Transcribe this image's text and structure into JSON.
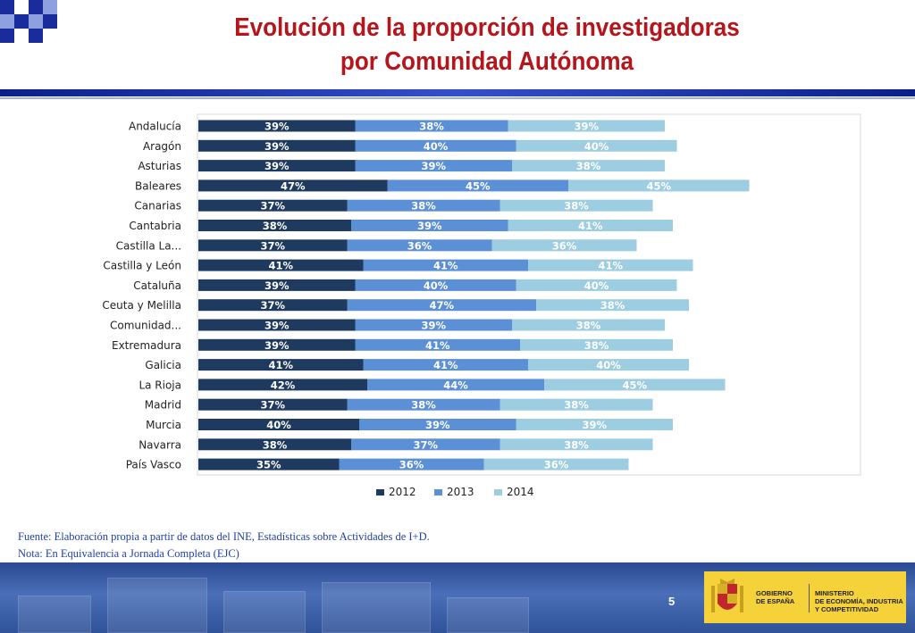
{
  "title": {
    "line1": "Evolución de la proporción de investigadoras",
    "line2": "por Comunidad Autónoma"
  },
  "notes": {
    "source": "Fuente: Elaboración propia a partir de datos del INE, Estadísticas sobre Actividades de I+D.",
    "note": "Nota: En Equivalencia a Jornada Completa (EJC)"
  },
  "footer": {
    "page_number": "5",
    "gov_line1": "GOBIERNO",
    "gov_line2": "DE ESPAÑA",
    "ministry_line1": "MINISTERIO",
    "ministry_line2": "DE ECONOMÍA, INDUSTRIA",
    "ministry_line3": "Y COMPETITIVIDAD"
  },
  "colors": {
    "title": "#b5161c",
    "series_2012": "#1f3a5f",
    "series_2013": "#5b8fd6",
    "series_2014": "#9dcde0"
  },
  "chart_data": {
    "type": "bar",
    "orientation": "horizontal",
    "stacked": true,
    "categories": [
      "Andalucía",
      "Aragón",
      "Asturias",
      "Baleares",
      "Canarias",
      "Cantabria",
      "Castilla La...",
      "Castilla y León",
      "Cataluña",
      "Ceuta y Melilla",
      "Comunidad...",
      "Extremadura",
      "Galicia",
      "La Rioja",
      "Madrid",
      "Murcia",
      "Navarra",
      "País Vasco"
    ],
    "series": [
      {
        "name": "2012",
        "color": "#1f3a5f",
        "values": [
          39,
          39,
          39,
          47,
          37,
          38,
          37,
          41,
          39,
          37,
          39,
          39,
          41,
          42,
          37,
          40,
          38,
          35
        ]
      },
      {
        "name": "2013",
        "color": "#5b8fd6",
        "values": [
          38,
          40,
          39,
          45,
          38,
          39,
          36,
          41,
          40,
          47,
          39,
          41,
          41,
          44,
          38,
          39,
          37,
          36
        ]
      },
      {
        "name": "2014",
        "color": "#9dcde0",
        "values": [
          39,
          40,
          38,
          45,
          38,
          41,
          36,
          41,
          40,
          38,
          38,
          38,
          40,
          45,
          38,
          39,
          38,
          36
        ]
      }
    ],
    "value_suffix": "%",
    "legend": "bottom",
    "grid": false,
    "title": "",
    "xlabel": "",
    "ylabel": ""
  }
}
